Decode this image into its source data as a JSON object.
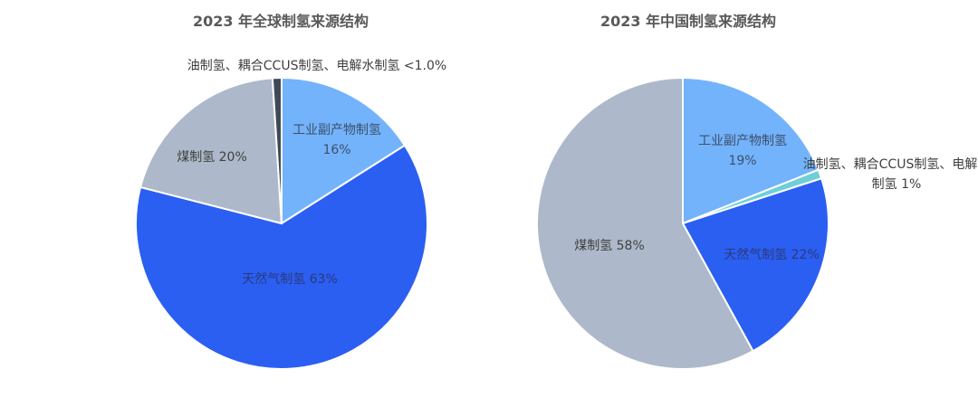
{
  "chart_data": [
    {
      "type": "pie",
      "title": "2023 年全球制氢来源结构",
      "slices": [
        {
          "label": "工业副产物制氢",
          "value": 16,
          "value_text": "16%",
          "color": "#73B3FB",
          "label_color": "#3d4f6a"
        },
        {
          "label": "天然气制氢",
          "value": 63,
          "value_text": "63%",
          "color": "#2B5FF2",
          "label_color": "#2a3a7a"
        },
        {
          "label": "煤制氢",
          "value": 20,
          "value_text": "20%",
          "color": "#ADB9CA",
          "label_color": "#404040"
        },
        {
          "label": "油制氢、耦合CCUS制氢、电解水制氢",
          "value": 1,
          "value_text": "<1.0%",
          "color": "#404A56",
          "label_color": "#404040"
        }
      ]
    },
    {
      "type": "pie",
      "title": "2023 年中国制氢来源结构",
      "slices": [
        {
          "label": "工业副产物制氢",
          "value": 19,
          "value_text": "19%",
          "color": "#73B3FB",
          "label_color": "#3d4f6a"
        },
        {
          "label": "油制氢、耦合CCUS制氢、电解水制氢",
          "value": 1,
          "value_text": "1%",
          "color": "#6FCFD8",
          "label_color": "#404040"
        },
        {
          "label": "天然气制氢",
          "value": 22,
          "value_text": "22%",
          "color": "#2B5FF2",
          "label_color": "#2a3a7a"
        },
        {
          "label": "煤制氢",
          "value": 58,
          "value_text": "58%",
          "color": "#ADB9CA",
          "label_color": "#404040"
        }
      ]
    }
  ]
}
